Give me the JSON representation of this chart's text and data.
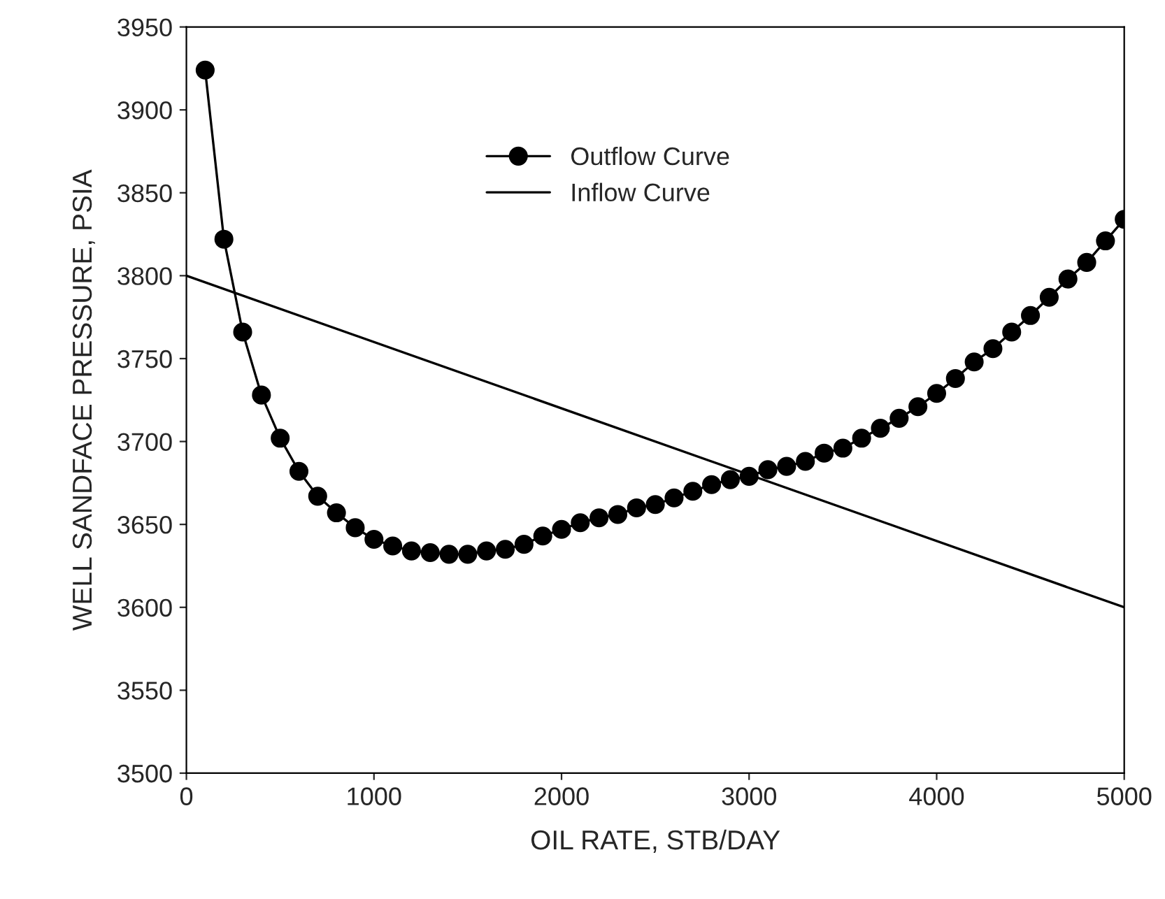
{
  "chart_data": {
    "type": "line",
    "xlabel": "OIL RATE, STB/DAY",
    "ylabel": "WELL SANDFACE PRESSURE, PSIA",
    "series": [
      {
        "name": "Outflow Curve",
        "color": "#000000",
        "marker": "circle",
        "x": [
          100,
          200,
          300,
          400,
          500,
          600,
          700,
          800,
          900,
          1000,
          1100,
          1200,
          1300,
          1400,
          1500,
          1600,
          1700,
          1800,
          1900,
          2000,
          2100,
          2200,
          2300,
          2400,
          2500,
          2600,
          2700,
          2800,
          2900,
          3000,
          3100,
          3200,
          3300,
          3400,
          3500,
          3600,
          3700,
          3800,
          3900,
          4000,
          4100,
          4200,
          4300,
          4400,
          4500,
          4600,
          4700,
          4800,
          4900,
          5000
        ],
        "values": [
          3924,
          3822,
          3766,
          3728,
          3702,
          3682,
          3667,
          3657,
          3648,
          3641,
          3637,
          3634,
          3633,
          3632,
          3632,
          3634,
          3635,
          3638,
          3643,
          3647,
          3651,
          3654,
          3656,
          3660,
          3662,
          3666,
          3670,
          3674,
          3677,
          3679,
          3683,
          3685,
          3688,
          3693,
          3696,
          3702,
          3708,
          3714,
          3721,
          3729,
          3738,
          3748,
          3756,
          3766,
          3776,
          3787,
          3798,
          3808,
          3821,
          3834
        ]
      },
      {
        "name": "Inflow Curve",
        "color": "#000000",
        "marker": "none",
        "x": [
          0,
          5000
        ],
        "values": [
          3800,
          3600
        ]
      }
    ],
    "xlim": [
      0,
      5000
    ],
    "xticks": [
      0,
      1000,
      2000,
      3000,
      4000,
      5000
    ],
    "ylim": [
      3500,
      3950
    ],
    "yticks": [
      3500,
      3550,
      3600,
      3650,
      3700,
      3750,
      3800,
      3850,
      3900,
      3950
    ],
    "grid": false,
    "legend": "top",
    "line_style": "solid"
  }
}
